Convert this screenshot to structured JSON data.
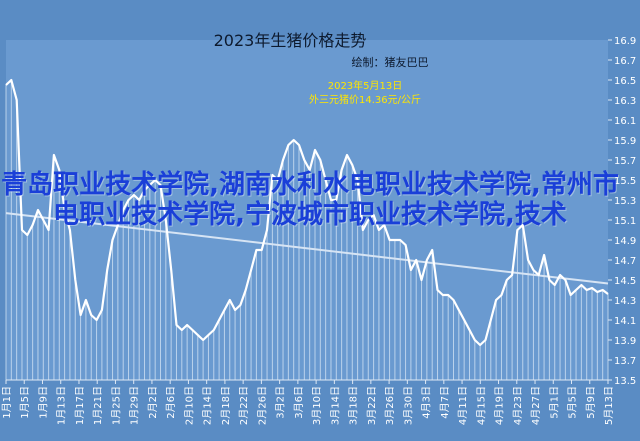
{
  "colors": {
    "background": "#5a8cc4",
    "plot_background": "#6a9ad0",
    "line": "#ffffff",
    "fill_lines": "#cfe0f3",
    "trend": "#d6e4f4",
    "callout_text": "#ffe600",
    "overlay_text": "#1a3fd8"
  },
  "overlay": {
    "text": "青岛职业技术学院,湖南水利水电职业技术学院,常州市电职业技术学院,宁波城市职业技术学院,技术"
  },
  "chart_data": {
    "type": "line",
    "title": "2023年生猪价格走势",
    "subtitle": "绘制：猪友巴巴",
    "annotation": {
      "line1": "2023年5月13日",
      "line2": "外三元猪价14.36元/公斤"
    },
    "ylim": [
      13.5,
      16.9
    ],
    "yticks": [
      13.5,
      13.7,
      13.9,
      14.1,
      14.3,
      14.5,
      14.7,
      14.9,
      15.1,
      15.3,
      15.5,
      15.7,
      15.9,
      16.1,
      16.3,
      16.5,
      16.7,
      16.9
    ],
    "xtick_labels": [
      "1月1日",
      "1月5日",
      "1月9日",
      "1月13日",
      "1月17日",
      "1月21日",
      "1月25日",
      "1月29日",
      "2月2日",
      "2月6日",
      "2月10日",
      "2月14日",
      "2月18日",
      "2月22日",
      "2月26日",
      "3月2日",
      "3月6日",
      "3月10日",
      "3月14日",
      "3月18日",
      "3月22日",
      "3月26日",
      "3月30日",
      "4月3日",
      "4月7日",
      "4月11日",
      "4月15日",
      "4月19日",
      "4月23日",
      "4月27日",
      "5月1日",
      "5月5日",
      "5月9日",
      "5月13日"
    ],
    "grid": false,
    "trendline": true,
    "series": [
      {
        "values": [
          16.45,
          16.5,
          16.3,
          15.0,
          14.95,
          15.05,
          15.2,
          15.1,
          15.0,
          15.75,
          15.6,
          15.2,
          15.0,
          14.5,
          14.15,
          14.3,
          14.15,
          14.1,
          14.2,
          14.6,
          14.9,
          15.05,
          15.2,
          15.3,
          15.35,
          15.3,
          15.4,
          15.45,
          15.5,
          15.45,
          15.1,
          14.6,
          14.05,
          14.0,
          14.05,
          14.0,
          13.95,
          13.9,
          13.95,
          14.0,
          14.1,
          14.2,
          14.3,
          14.2,
          14.25,
          14.4,
          14.6,
          14.8,
          14.8,
          15.0,
          15.55,
          15.5,
          15.7,
          15.85,
          15.9,
          15.85,
          15.7,
          15.6,
          15.8,
          15.7,
          15.5,
          15.3,
          15.3,
          15.6,
          15.75,
          15.65,
          15.5,
          15.0,
          15.1,
          15.15,
          15.0,
          15.05,
          14.9,
          14.9,
          14.9,
          14.85,
          14.6,
          14.7,
          14.5,
          14.7,
          14.8,
          14.4,
          14.35,
          14.35,
          14.3,
          14.2,
          14.1,
          14.0,
          13.9,
          13.85,
          13.9,
          14.1,
          14.3,
          14.35,
          14.5,
          14.55,
          15.0,
          15.05,
          14.7,
          14.6,
          14.55,
          14.75,
          14.5,
          14.45,
          14.55,
          14.5,
          14.35,
          14.4,
          14.45,
          14.4,
          14.42,
          14.38,
          14.4,
          14.36
        ]
      }
    ],
    "value_labels": [
      "13.5",
      "13.7",
      "13.9",
      "14.1",
      "14.3",
      "14.5",
      "14.7",
      "14.9",
      "15.1",
      "15.3",
      "15.5",
      "15.7",
      "15.9",
      "16.1",
      "16.3",
      "16.5",
      "16.7",
      "16.9"
    ]
  }
}
